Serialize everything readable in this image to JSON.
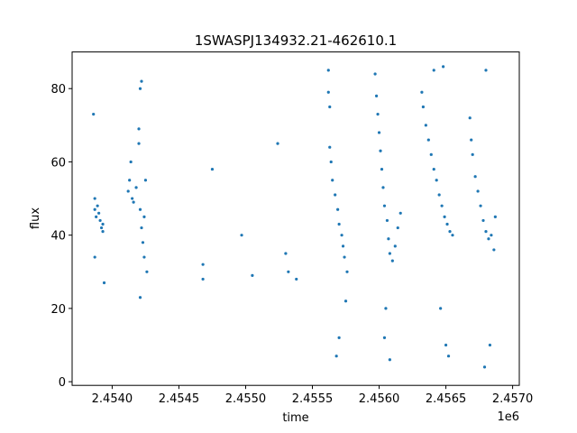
{
  "chart_data": {
    "type": "scatter",
    "title": "1SWASPJ134932.21-462610.1",
    "xlabel": "time",
    "ylabel": "flux",
    "x_offset_label": "1e6",
    "xlim": [
      2.4537,
      2.45705
    ],
    "ylim": [
      -1,
      90
    ],
    "x_scale_factor": 1000000,
    "x_ticks": [
      2.454,
      2.4545,
      2.455,
      2.4555,
      2.456,
      2.4565,
      2.457
    ],
    "x_tick_labels": [
      "2.4540",
      "2.4545",
      "2.4550",
      "2.4555",
      "2.4560",
      "2.4565",
      "2.4570"
    ],
    "y_ticks": [
      0,
      20,
      40,
      60,
      80
    ],
    "y_tick_labels": [
      "0",
      "20",
      "40",
      "60",
      "80"
    ],
    "grid": false,
    "legend": "none",
    "point_color": "#1f77b4",
    "series": [
      {
        "values": [
          [
            2.45387,
            50
          ],
          [
            2.45387,
            47
          ],
          [
            2.45388,
            45
          ],
          [
            2.45389,
            48
          ],
          [
            2.4539,
            46
          ],
          [
            2.45391,
            44
          ],
          [
            2.45392,
            42
          ],
          [
            2.45393,
            43
          ],
          [
            2.45393,
            41
          ],
          [
            2.45386,
            73
          ],
          [
            2.45387,
            34
          ],
          [
            2.45394,
            27
          ],
          [
            2.45412,
            52
          ],
          [
            2.45413,
            55
          ],
          [
            2.45414,
            60
          ],
          [
            2.45415,
            50
          ],
          [
            2.45416,
            49
          ],
          [
            2.45418,
            53
          ],
          [
            2.4542,
            65
          ],
          [
            2.4542,
            69
          ],
          [
            2.45421,
            80
          ],
          [
            2.45422,
            82
          ],
          [
            2.45421,
            47
          ],
          [
            2.45422,
            42
          ],
          [
            2.45423,
            38
          ],
          [
            2.45424,
            34
          ],
          [
            2.45424,
            45
          ],
          [
            2.45425,
            55
          ],
          [
            2.45426,
            30
          ],
          [
            2.45421,
            23
          ],
          [
            2.45468,
            28
          ],
          [
            2.45468,
            32
          ],
          [
            2.45475,
            58
          ],
          [
            2.45497,
            40
          ],
          [
            2.45505,
            29
          ],
          [
            2.45524,
            65
          ],
          [
            2.4553,
            35
          ],
          [
            2.45532,
            30
          ],
          [
            2.45538,
            28
          ],
          [
            2.45562,
            85
          ],
          [
            2.45562,
            79
          ],
          [
            2.45563,
            75
          ],
          [
            2.45563,
            64
          ],
          [
            2.45564,
            60
          ],
          [
            2.45565,
            55
          ],
          [
            2.45567,
            51
          ],
          [
            2.45569,
            47
          ],
          [
            2.4557,
            43
          ],
          [
            2.45572,
            40
          ],
          [
            2.45573,
            37
          ],
          [
            2.45574,
            34
          ],
          [
            2.45576,
            30
          ],
          [
            2.45575,
            22
          ],
          [
            2.4557,
            12
          ],
          [
            2.45568,
            7
          ],
          [
            2.45597,
            84
          ],
          [
            2.45598,
            78
          ],
          [
            2.45599,
            73
          ],
          [
            2.456,
            68
          ],
          [
            2.45601,
            63
          ],
          [
            2.45602,
            58
          ],
          [
            2.45603,
            53
          ],
          [
            2.45604,
            48
          ],
          [
            2.45606,
            44
          ],
          [
            2.45607,
            39
          ],
          [
            2.45608,
            35
          ],
          [
            2.4561,
            33
          ],
          [
            2.45612,
            37
          ],
          [
            2.45614,
            42
          ],
          [
            2.45616,
            46
          ],
          [
            2.45605,
            20
          ],
          [
            2.45608,
            6
          ],
          [
            2.45604,
            12
          ],
          [
            2.45632,
            79
          ],
          [
            2.45633,
            75
          ],
          [
            2.45635,
            70
          ],
          [
            2.45637,
            66
          ],
          [
            2.45639,
            62
          ],
          [
            2.45641,
            58
          ],
          [
            2.45643,
            55
          ],
          [
            2.45645,
            51
          ],
          [
            2.45647,
            48
          ],
          [
            2.45649,
            45
          ],
          [
            2.45651,
            43
          ],
          [
            2.45653,
            41
          ],
          [
            2.45655,
            40
          ],
          [
            2.45641,
            85
          ],
          [
            2.45648,
            86
          ],
          [
            2.4565,
            10
          ],
          [
            2.45646,
            20
          ],
          [
            2.45652,
            7
          ],
          [
            2.45668,
            72
          ],
          [
            2.45669,
            66
          ],
          [
            2.4567,
            62
          ],
          [
            2.45672,
            56
          ],
          [
            2.45674,
            52
          ],
          [
            2.45676,
            48
          ],
          [
            2.45678,
            44
          ],
          [
            2.4568,
            41
          ],
          [
            2.45682,
            39
          ],
          [
            2.45684,
            40
          ],
          [
            2.45686,
            36
          ],
          [
            2.45687,
            45
          ],
          [
            2.4568,
            85
          ],
          [
            2.45679,
            4
          ],
          [
            2.45683,
            10
          ]
        ]
      }
    ]
  }
}
